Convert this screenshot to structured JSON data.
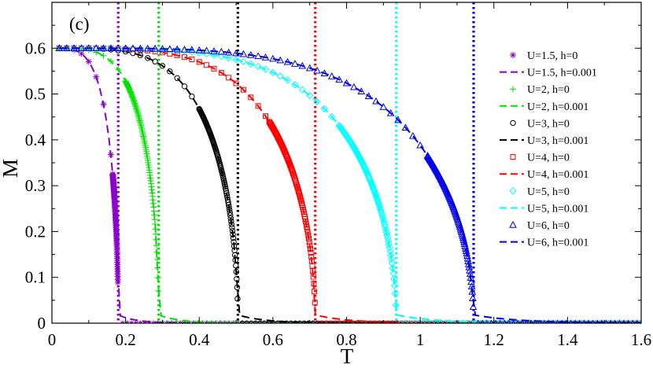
{
  "chart_data": {
    "type": "scatter",
    "panel_label": "(c)",
    "xlabel": "T",
    "ylabel": "M",
    "xlim": [
      0,
      1.6
    ],
    "ylim": [
      0,
      0.7
    ],
    "x_ticks": [
      0,
      0.2,
      0.4,
      0.6,
      0.8,
      1,
      1.2,
      1.4,
      1.6
    ],
    "x_tick_labels": [
      "0",
      "0.2",
      "0.4",
      "0.6",
      "0.8",
      "1",
      "1.2",
      "1.4",
      "1.6"
    ],
    "y_ticks": [
      0,
      0.1,
      0.2,
      0.3,
      0.4,
      0.5,
      0.6
    ],
    "y_tick_labels": [
      "0",
      "0.1",
      "0.2",
      "0.3",
      "0.4",
      "0.5",
      "0.6"
    ],
    "legend_position": "right",
    "saturation": 0.6,
    "groups": [
      {
        "U": "1.5",
        "color": "#8b00c8",
        "Tc": 0.18,
        "marker": "star",
        "sparse_until": 0.165,
        "label_h0": "U=1.5, h=0",
        "label_h": "U=1.5, h=0.001"
      },
      {
        "U": "2",
        "color": "#00e000",
        "Tc": 0.29,
        "marker": "plus",
        "sparse_until": 0.2,
        "label_h0": "U=2, h=0",
        "label_h": "U=2, h=0.001"
      },
      {
        "U": "3",
        "color": "#000000",
        "Tc": 0.505,
        "marker": "circle",
        "sparse_until": 0.4,
        "label_h0": "U=3, h=0",
        "label_h": "U=3, h=0.001"
      },
      {
        "U": "4",
        "color": "#ff0000",
        "Tc": 0.715,
        "marker": "square",
        "sparse_until": 0.59,
        "label_h0": "U=4, h=0",
        "label_h": "U=4, h=0.001"
      },
      {
        "U": "5",
        "color": "#00ffff",
        "Tc": 0.935,
        "marker": "diamond",
        "sparse_until": 0.78,
        "label_h0": "U=5, h=0",
        "label_h": "U=5, h=0.001"
      },
      {
        "U": "6",
        "color": "#0000e8",
        "Tc": 1.145,
        "marker": "triangle",
        "sparse_until": 1.02,
        "label_h0": "U=6, h=0",
        "label_h": "U=6, h=0.001"
      }
    ]
  }
}
